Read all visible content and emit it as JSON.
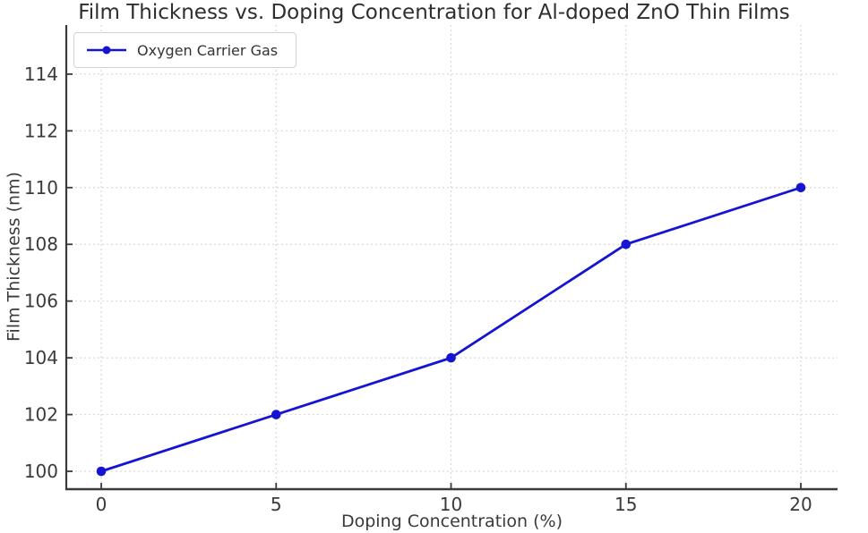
{
  "figure": {
    "background": "#ffffff"
  },
  "chart_data": {
    "type": "line",
    "title": "Film Thickness vs. Doping Concentration for Al-doped ZnO Thin Films",
    "xlabel": "Doping Concentration (%)",
    "ylabel": "Film Thickness (nm)",
    "x": [
      0,
      5,
      10,
      15,
      20
    ],
    "series": [
      {
        "name": "Oxygen Carrier Gas",
        "values": [
          100,
          102,
          104,
          108,
          110
        ]
      }
    ],
    "x_ticks": [
      0,
      5,
      10,
      15,
      20
    ],
    "y_ticks": [
      100,
      102,
      104,
      106,
      108,
      110,
      112,
      114
    ],
    "xlim": [
      -1.0,
      21.05
    ],
    "ylim": [
      99.37,
      115.73
    ],
    "grid": true,
    "grid_style": "dotted",
    "legend_position": "upper-left",
    "colors": {
      "line": "#1414d2",
      "grid": "#d9d9d9",
      "spine": "#3a3a3a",
      "tick_label": "#3a3a3a",
      "title": "#2e2e2e"
    }
  }
}
